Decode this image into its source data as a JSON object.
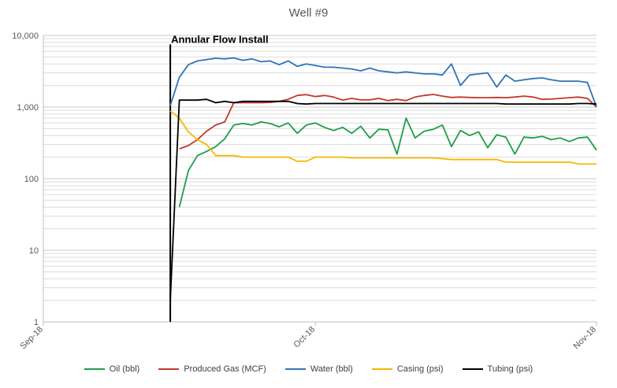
{
  "chart_data": {
    "type": "line",
    "title": "Well #9",
    "xlabel": "",
    "ylabel": "",
    "y_scale": "log",
    "ylim": [
      1,
      10000
    ],
    "y_ticks": [
      {
        "value": 1,
        "label": "1"
      },
      {
        "value": 10,
        "label": "10"
      },
      {
        "value": 100,
        "label": "100"
      },
      {
        "value": 1000,
        "label": "1,000"
      },
      {
        "value": 10000,
        "label": "10,000"
      }
    ],
    "xlim": [
      "2018-09-01",
      "2018-11-01"
    ],
    "x_ticks": [
      {
        "value": "2018-09-01",
        "label": "Sep-18"
      },
      {
        "value": "2018-10-01",
        "label": "Oct-18"
      },
      {
        "value": "2018-11-01",
        "label": "Nov-18"
      }
    ],
    "grid": true,
    "legend_position": "bottom",
    "annotations": [
      {
        "text": "Annular Flow Install",
        "x": "2018-09-15",
        "ymin": 1,
        "ymax": 7500,
        "color": "#000000"
      }
    ],
    "series": [
      {
        "name": "Oil (bbl)",
        "color": "#1E9E4A",
        "points": [
          [
            "2018-09-16",
            40
          ],
          [
            "2018-09-17",
            130
          ],
          [
            "2018-09-18",
            210
          ],
          [
            "2018-09-19",
            240
          ],
          [
            "2018-09-20",
            280
          ],
          [
            "2018-09-21",
            360
          ],
          [
            "2018-09-22",
            560
          ],
          [
            "2018-09-23",
            590
          ],
          [
            "2018-09-24",
            560
          ],
          [
            "2018-09-25",
            620
          ],
          [
            "2018-09-26",
            590
          ],
          [
            "2018-09-27",
            530
          ],
          [
            "2018-09-28",
            600
          ],
          [
            "2018-09-29",
            430
          ],
          [
            "2018-09-30",
            560
          ],
          [
            "2018-10-01",
            600
          ],
          [
            "2018-10-02",
            520
          ],
          [
            "2018-10-03",
            470
          ],
          [
            "2018-10-04",
            520
          ],
          [
            "2018-10-05",
            430
          ],
          [
            "2018-10-06",
            540
          ],
          [
            "2018-10-07",
            370
          ],
          [
            "2018-10-08",
            490
          ],
          [
            "2018-10-09",
            480
          ],
          [
            "2018-10-10",
            220
          ],
          [
            "2018-10-11",
            700
          ],
          [
            "2018-10-12",
            370
          ],
          [
            "2018-10-13",
            460
          ],
          [
            "2018-10-14",
            490
          ],
          [
            "2018-10-15",
            560
          ],
          [
            "2018-10-16",
            280
          ],
          [
            "2018-10-17",
            470
          ],
          [
            "2018-10-18",
            400
          ],
          [
            "2018-10-19",
            450
          ],
          [
            "2018-10-20",
            270
          ],
          [
            "2018-10-21",
            410
          ],
          [
            "2018-10-22",
            380
          ],
          [
            "2018-10-23",
            220
          ],
          [
            "2018-10-24",
            380
          ],
          [
            "2018-10-25",
            370
          ],
          [
            "2018-10-26",
            390
          ],
          [
            "2018-10-27",
            350
          ],
          [
            "2018-10-28",
            370
          ],
          [
            "2018-10-29",
            330
          ],
          [
            "2018-10-30",
            370
          ],
          [
            "2018-10-31",
            380
          ],
          [
            "2018-11-01",
            250
          ]
        ]
      },
      {
        "name": "Produced Gas (MCF)",
        "color": "#C0392B",
        "points": [
          [
            "2018-09-16",
            260
          ],
          [
            "2018-09-17",
            290
          ],
          [
            "2018-09-18",
            350
          ],
          [
            "2018-09-19",
            460
          ],
          [
            "2018-09-20",
            560
          ],
          [
            "2018-09-21",
            620
          ],
          [
            "2018-09-22",
            1150
          ],
          [
            "2018-09-23",
            1150
          ],
          [
            "2018-09-24",
            1150
          ],
          [
            "2018-09-25",
            1150
          ],
          [
            "2018-09-26",
            1160
          ],
          [
            "2018-09-27",
            1200
          ],
          [
            "2018-09-28",
            1280
          ],
          [
            "2018-09-29",
            1450
          ],
          [
            "2018-09-30",
            1490
          ],
          [
            "2018-10-01",
            1400
          ],
          [
            "2018-10-02",
            1450
          ],
          [
            "2018-10-03",
            1380
          ],
          [
            "2018-10-04",
            1250
          ],
          [
            "2018-10-05",
            1320
          ],
          [
            "2018-10-06",
            1260
          ],
          [
            "2018-10-07",
            1260
          ],
          [
            "2018-10-08",
            1320
          ],
          [
            "2018-10-09",
            1230
          ],
          [
            "2018-10-10",
            1280
          ],
          [
            "2018-10-11",
            1230
          ],
          [
            "2018-10-12",
            1380
          ],
          [
            "2018-10-13",
            1450
          ],
          [
            "2018-10-14",
            1500
          ],
          [
            "2018-10-15",
            1420
          ],
          [
            "2018-10-16",
            1360
          ],
          [
            "2018-10-17",
            1380
          ],
          [
            "2018-10-18",
            1360
          ],
          [
            "2018-10-19",
            1350
          ],
          [
            "2018-10-20",
            1350
          ],
          [
            "2018-10-21",
            1360
          ],
          [
            "2018-10-22",
            1350
          ],
          [
            "2018-10-23",
            1380
          ],
          [
            "2018-10-24",
            1420
          ],
          [
            "2018-10-25",
            1380
          ],
          [
            "2018-10-26",
            1280
          ],
          [
            "2018-10-27",
            1290
          ],
          [
            "2018-10-28",
            1320
          ],
          [
            "2018-10-29",
            1350
          ],
          [
            "2018-10-30",
            1380
          ],
          [
            "2018-10-31",
            1320
          ],
          [
            "2018-11-01",
            1000
          ]
        ]
      },
      {
        "name": "Water (bbl)",
        "color": "#2E75B6",
        "points": [
          [
            "2018-09-15",
            1050
          ],
          [
            "2018-09-16",
            2600
          ],
          [
            "2018-09-17",
            3900
          ],
          [
            "2018-09-18",
            4400
          ],
          [
            "2018-09-19",
            4600
          ],
          [
            "2018-09-20",
            4800
          ],
          [
            "2018-09-21",
            4700
          ],
          [
            "2018-09-22",
            4850
          ],
          [
            "2018-09-23",
            4500
          ],
          [
            "2018-09-24",
            4700
          ],
          [
            "2018-09-25",
            4300
          ],
          [
            "2018-09-26",
            4400
          ],
          [
            "2018-09-27",
            3900
          ],
          [
            "2018-09-28",
            4400
          ],
          [
            "2018-09-29",
            3700
          ],
          [
            "2018-09-30",
            4000
          ],
          [
            "2018-10-01",
            3800
          ],
          [
            "2018-10-02",
            3600
          ],
          [
            "2018-10-03",
            3600
          ],
          [
            "2018-10-04",
            3500
          ],
          [
            "2018-10-05",
            3400
          ],
          [
            "2018-10-06",
            3200
          ],
          [
            "2018-10-07",
            3500
          ],
          [
            "2018-10-08",
            3200
          ],
          [
            "2018-10-09",
            3100
          ],
          [
            "2018-10-10",
            3000
          ],
          [
            "2018-10-11",
            3100
          ],
          [
            "2018-10-12",
            3000
          ],
          [
            "2018-10-13",
            2900
          ],
          [
            "2018-10-14",
            2900
          ],
          [
            "2018-10-15",
            2800
          ],
          [
            "2018-10-16",
            4000
          ],
          [
            "2018-10-17",
            2000
          ],
          [
            "2018-10-18",
            2800
          ],
          [
            "2018-10-19",
            2900
          ],
          [
            "2018-10-20",
            3000
          ],
          [
            "2018-10-21",
            1900
          ],
          [
            "2018-10-22",
            2800
          ],
          [
            "2018-10-23",
            2300
          ],
          [
            "2018-10-24",
            2400
          ],
          [
            "2018-10-25",
            2500
          ],
          [
            "2018-10-26",
            2550
          ],
          [
            "2018-10-27",
            2400
          ],
          [
            "2018-10-28",
            2300
          ],
          [
            "2018-10-29",
            2300
          ],
          [
            "2018-10-30",
            2300
          ],
          [
            "2018-10-31",
            2200
          ],
          [
            "2018-11-01",
            1000
          ]
        ]
      },
      {
        "name": "Casing (psi)",
        "color": "#F5B800",
        "points": [
          [
            "2018-09-15",
            880
          ],
          [
            "2018-09-16",
            700
          ],
          [
            "2018-09-17",
            450
          ],
          [
            "2018-09-18",
            350
          ],
          [
            "2018-09-19",
            300
          ],
          [
            "2018-09-20",
            210
          ],
          [
            "2018-09-21",
            210
          ],
          [
            "2018-09-22",
            210
          ],
          [
            "2018-09-23",
            200
          ],
          [
            "2018-09-24",
            200
          ],
          [
            "2018-09-25",
            200
          ],
          [
            "2018-09-26",
            200
          ],
          [
            "2018-09-27",
            200
          ],
          [
            "2018-09-28",
            200
          ],
          [
            "2018-09-29",
            175
          ],
          [
            "2018-09-30",
            175
          ],
          [
            "2018-10-01",
            200
          ],
          [
            "2018-10-02",
            200
          ],
          [
            "2018-10-03",
            200
          ],
          [
            "2018-10-04",
            200
          ],
          [
            "2018-10-05",
            195
          ],
          [
            "2018-10-06",
            195
          ],
          [
            "2018-10-07",
            195
          ],
          [
            "2018-10-08",
            195
          ],
          [
            "2018-10-09",
            195
          ],
          [
            "2018-10-10",
            195
          ],
          [
            "2018-10-11",
            195
          ],
          [
            "2018-10-12",
            195
          ],
          [
            "2018-10-13",
            195
          ],
          [
            "2018-10-14",
            195
          ],
          [
            "2018-10-15",
            190
          ],
          [
            "2018-10-16",
            185
          ],
          [
            "2018-10-17",
            185
          ],
          [
            "2018-10-18",
            185
          ],
          [
            "2018-10-19",
            185
          ],
          [
            "2018-10-20",
            185
          ],
          [
            "2018-10-21",
            185
          ],
          [
            "2018-10-22",
            170
          ],
          [
            "2018-10-23",
            170
          ],
          [
            "2018-10-24",
            170
          ],
          [
            "2018-10-25",
            170
          ],
          [
            "2018-10-26",
            170
          ],
          [
            "2018-10-27",
            170
          ],
          [
            "2018-10-28",
            170
          ],
          [
            "2018-10-29",
            170
          ],
          [
            "2018-10-30",
            160
          ],
          [
            "2018-10-31",
            160
          ],
          [
            "2018-11-01",
            160
          ]
        ]
      },
      {
        "name": "Tubing (psi)",
        "color": "#000000",
        "points": [
          [
            "2018-09-15",
            2
          ],
          [
            "2018-09-16",
            1250
          ],
          [
            "2018-09-17",
            1250
          ],
          [
            "2018-09-18",
            1250
          ],
          [
            "2018-09-19",
            1280
          ],
          [
            "2018-09-20",
            1150
          ],
          [
            "2018-09-21",
            1200
          ],
          [
            "2018-09-22",
            1150
          ],
          [
            "2018-09-23",
            1200
          ],
          [
            "2018-09-24",
            1200
          ],
          [
            "2018-09-25",
            1200
          ],
          [
            "2018-09-26",
            1200
          ],
          [
            "2018-09-27",
            1200
          ],
          [
            "2018-09-28",
            1200
          ],
          [
            "2018-09-29",
            1120
          ],
          [
            "2018-09-30",
            1100
          ],
          [
            "2018-10-01",
            1120
          ],
          [
            "2018-10-02",
            1120
          ],
          [
            "2018-10-03",
            1120
          ],
          [
            "2018-10-04",
            1120
          ],
          [
            "2018-10-05",
            1120
          ],
          [
            "2018-10-06",
            1120
          ],
          [
            "2018-10-07",
            1120
          ],
          [
            "2018-10-08",
            1120
          ],
          [
            "2018-10-09",
            1120
          ],
          [
            "2018-10-10",
            1120
          ],
          [
            "2018-10-11",
            1120
          ],
          [
            "2018-10-12",
            1120
          ],
          [
            "2018-10-13",
            1120
          ],
          [
            "2018-10-14",
            1120
          ],
          [
            "2018-10-15",
            1120
          ],
          [
            "2018-10-16",
            1120
          ],
          [
            "2018-10-17",
            1120
          ],
          [
            "2018-10-18",
            1120
          ],
          [
            "2018-10-19",
            1120
          ],
          [
            "2018-10-20",
            1120
          ],
          [
            "2018-10-21",
            1120
          ],
          [
            "2018-10-22",
            1100
          ],
          [
            "2018-10-23",
            1100
          ],
          [
            "2018-10-24",
            1100
          ],
          [
            "2018-10-25",
            1100
          ],
          [
            "2018-10-26",
            1100
          ],
          [
            "2018-10-27",
            1100
          ],
          [
            "2018-10-28",
            1100
          ],
          [
            "2018-10-29",
            1100
          ],
          [
            "2018-10-30",
            1120
          ],
          [
            "2018-10-31",
            1120
          ],
          [
            "2018-11-01",
            1100
          ]
        ]
      }
    ]
  }
}
